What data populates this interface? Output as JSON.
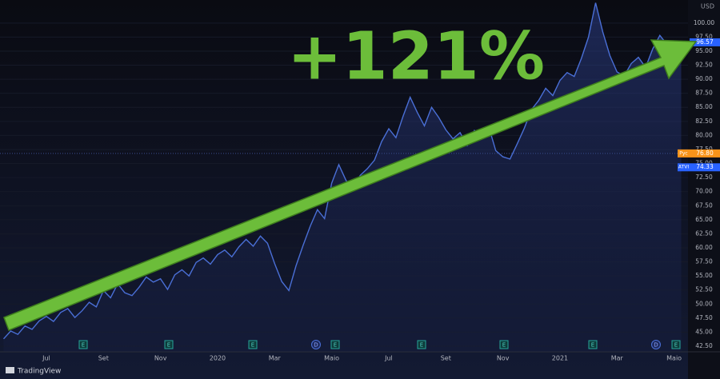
{
  "chart_data": {
    "type": "line",
    "annotation": "+121%",
    "currency": "USD",
    "brand": "TradingView",
    "categories": [
      null,
      null,
      null,
      null,
      null,
      null,
      "Jul",
      null,
      null,
      null,
      null,
      null,
      null,
      null,
      "Set",
      null,
      null,
      null,
      null,
      null,
      null,
      null,
      "Nov",
      null,
      null,
      null,
      null,
      null,
      null,
      null,
      "2020",
      null,
      null,
      null,
      null,
      null,
      null,
      null,
      "Mar",
      null,
      null,
      null,
      null,
      null,
      null,
      null,
      "Maio",
      null,
      null,
      null,
      null,
      null,
      null,
      null,
      "Jul",
      null,
      null,
      null,
      null,
      null,
      null,
      null,
      "Set",
      null,
      null,
      null,
      null,
      null,
      null,
      null,
      "Nov",
      null,
      null,
      null,
      null,
      null,
      null,
      null,
      "2021",
      null,
      null,
      null,
      null,
      null,
      null,
      null,
      "Mar",
      null,
      null,
      null,
      null,
      null,
      null,
      null,
      "Maio",
      null
    ],
    "series": [
      {
        "name": "ATVI",
        "color": "#4a6fd6",
        "values": [
          43.8,
          45.2,
          44.6,
          46.1,
          45.5,
          47.0,
          47.8,
          46.9,
          48.5,
          49.2,
          47.6,
          48.8,
          50.3,
          49.5,
          52.4,
          51.1,
          53.6,
          52.0,
          51.5,
          53.0,
          54.8,
          53.9,
          54.5,
          52.6,
          55.2,
          56.1,
          55.0,
          57.4,
          58.2,
          57.1,
          58.8,
          59.6,
          58.4,
          60.2,
          61.5,
          60.3,
          62.1,
          60.8,
          57.2,
          54.0,
          52.4,
          56.8,
          60.5,
          63.9,
          66.8,
          65.2,
          71.5,
          74.8,
          72.0,
          70.6,
          72.9,
          74.1,
          75.6,
          78.9,
          81.2,
          79.6,
          83.4,
          86.8,
          84.1,
          81.7,
          85.0,
          83.2,
          81.0,
          79.4,
          80.5,
          78.2,
          80.9,
          79.8,
          81.6,
          77.3,
          76.2,
          75.8,
          78.5,
          81.3,
          84.6,
          86.2,
          88.4,
          87.1,
          89.8,
          91.2,
          90.5,
          93.7,
          97.5,
          103.6,
          98.4,
          94.2,
          91.3,
          90.6,
          92.8,
          93.9,
          92.1,
          95.4,
          97.8,
          96.2,
          93.1,
          96.57
        ]
      }
    ],
    "ylim": [
      41.5,
      104.1
    ],
    "yticks": [
      {
        "value": 42.5,
        "label": "42.50"
      },
      {
        "value": 45,
        "label": "45.00"
      },
      {
        "value": 47.5,
        "label": "47.50"
      },
      {
        "value": 50,
        "label": "50.00"
      },
      {
        "value": 52.5,
        "label": "52.50"
      },
      {
        "value": 55,
        "label": "55.00"
      },
      {
        "value": 57.5,
        "label": "57.50"
      },
      {
        "value": 60,
        "label": "60.00"
      },
      {
        "value": 62.5,
        "label": "62.50"
      },
      {
        "value": 65,
        "label": "65.00"
      },
      {
        "value": 67.5,
        "label": "67.50"
      },
      {
        "value": 70,
        "label": "70.00"
      },
      {
        "value": 72.5,
        "label": "72.50"
      },
      {
        "value": 75,
        "label": "75.00"
      },
      {
        "value": 77.5,
        "label": "77.50"
      },
      {
        "value": 80,
        "label": "80.00"
      },
      {
        "value": 82.5,
        "label": "82.50"
      },
      {
        "value": 85,
        "label": "85.00"
      },
      {
        "value": 87.5,
        "label": "87.50"
      },
      {
        "value": 90,
        "label": "90.00"
      },
      {
        "value": 92.5,
        "label": "92.50"
      },
      {
        "value": 95,
        "label": "95.00"
      },
      {
        "value": 97.5,
        "label": "97.50"
      },
      {
        "value": 100,
        "label": "100.00"
      }
    ],
    "price_labels": [
      {
        "value": 96.57,
        "color": "#2962ff"
      },
      {
        "name": "Рус",
        "value": {
          "value": 76.8,
          "label": "76.80"
        },
        "color": "#f7931a"
      },
      {
        "name": "ATVI",
        "value": 74.33,
        "color": "#2962ff"
      }
    ],
    "event_markers": [
      "E",
      "E",
      "E",
      "D",
      "E",
      "E",
      "E",
      "E",
      "D",
      "E"
    ]
  }
}
